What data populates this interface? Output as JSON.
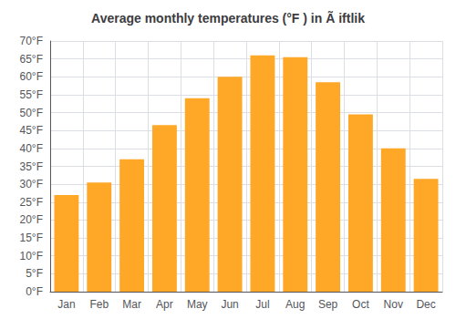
{
  "chart_data": {
    "type": "bar",
    "title": "Average monthly temperatures (°F ) in Ã iftlik",
    "categories": [
      "Jan",
      "Feb",
      "Mar",
      "Apr",
      "May",
      "Jun",
      "Jul",
      "Aug",
      "Sep",
      "Oct",
      "Nov",
      "Dec"
    ],
    "values": [
      27,
      30.5,
      37,
      46.5,
      54,
      60,
      66,
      65.5,
      58.5,
      49.5,
      40,
      31.5
    ],
    "color": "#FFA726",
    "ylim": [
      0,
      70
    ],
    "yticks": [
      {
        "value": 0,
        "label": "0°F"
      },
      {
        "value": 5,
        "label": "5°F"
      },
      {
        "value": 10,
        "label": "10°F"
      },
      {
        "value": 15,
        "label": "15°F"
      },
      {
        "value": 20,
        "label": "20°F"
      },
      {
        "value": 25,
        "label": "25°F"
      },
      {
        "value": 30,
        "label": "30°F"
      },
      {
        "value": 35,
        "label": "35°F"
      },
      {
        "value": 40,
        "label": "40°F"
      },
      {
        "value": 45,
        "label": "45°F"
      },
      {
        "value": 50,
        "label": "50°F"
      },
      {
        "value": 55,
        "label": "55°F"
      },
      {
        "value": 60,
        "label": "60°F"
      },
      {
        "value": 65,
        "label": "65°F"
      },
      {
        "value": 70,
        "label": "70°F"
      }
    ],
    "grid": true
  }
}
